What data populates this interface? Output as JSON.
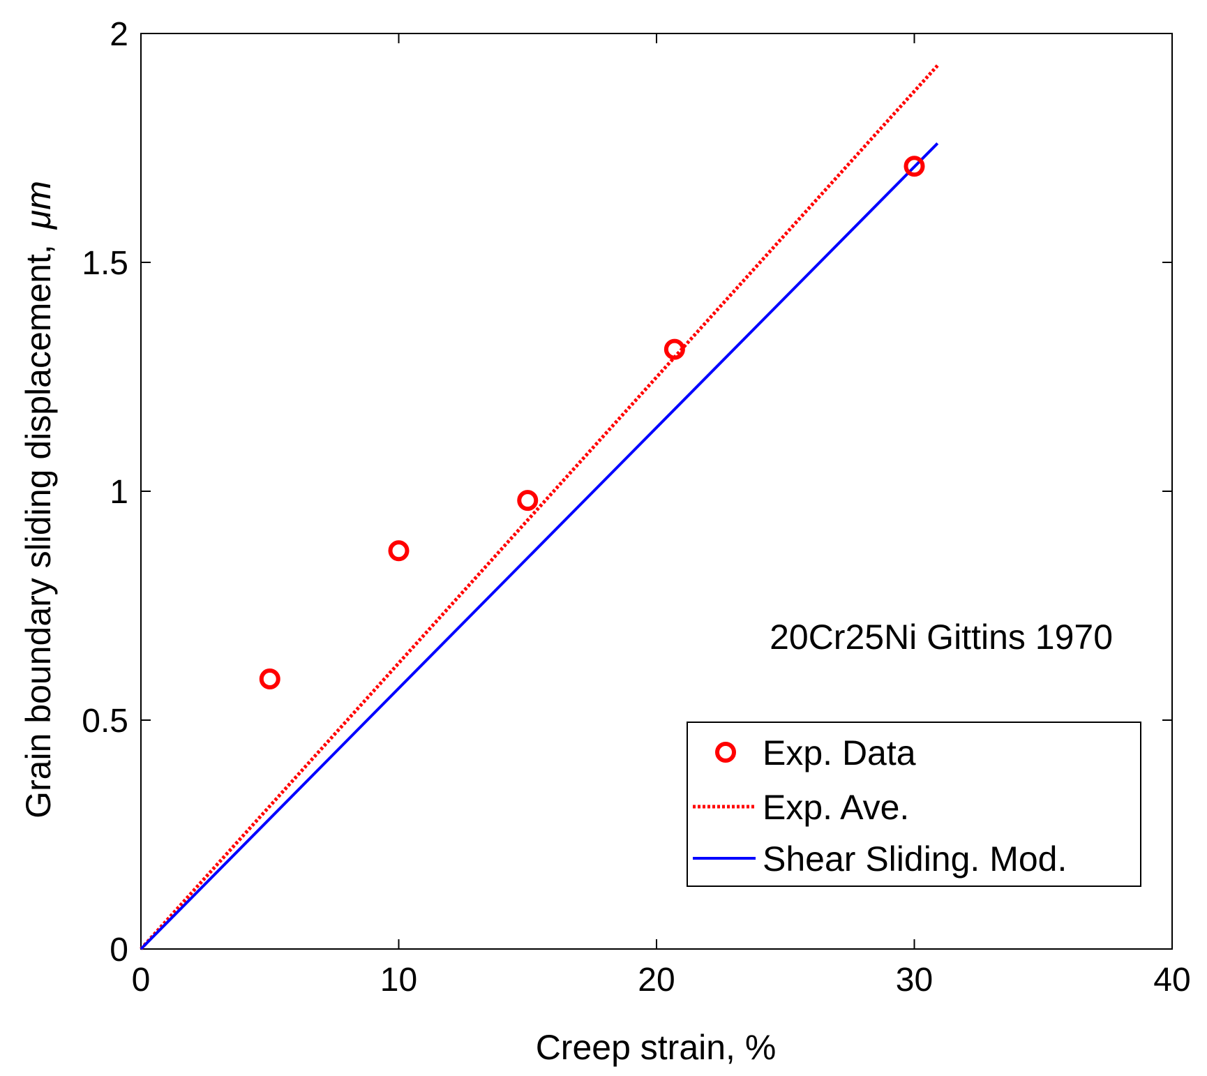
{
  "chart_data": {
    "type": "line",
    "title": "",
    "annotation": "20Cr25Ni Gittins 1970",
    "xlabel": "Creep strain, %",
    "ylabel_main": "Grain boundary sliding displacement,",
    "ylabel_unit": "μm",
    "xlim": [
      0,
      40
    ],
    "ylim": [
      0,
      2
    ],
    "xticks": [
      0,
      10,
      20,
      30,
      40
    ],
    "yticks": [
      0,
      0.5,
      1,
      1.5,
      2
    ],
    "xtick_labels": [
      "0",
      "10",
      "20",
      "30",
      "40"
    ],
    "ytick_labels": [
      "0",
      "0.5",
      "1",
      "1.5",
      "2"
    ],
    "grid": false,
    "legend_position": "bottom-right",
    "series": [
      {
        "name": "Exp. Data",
        "kind": "scatter",
        "marker": "circle-open",
        "color": "#ff0000",
        "x": [
          5,
          10,
          15,
          20.7,
          30
        ],
        "y": [
          0.59,
          0.87,
          0.98,
          1.31,
          1.71
        ]
      },
      {
        "name": "Exp. Ave.",
        "kind": "line",
        "style": "dotted",
        "color": "#ff0000",
        "x": [
          0,
          30.9
        ],
        "y": [
          0,
          1.93
        ]
      },
      {
        "name": "Shear Sliding. Mod.",
        "kind": "line",
        "style": "solid",
        "color": "#0000ff",
        "x": [
          0,
          30.9
        ],
        "y": [
          0,
          1.76
        ]
      }
    ]
  }
}
